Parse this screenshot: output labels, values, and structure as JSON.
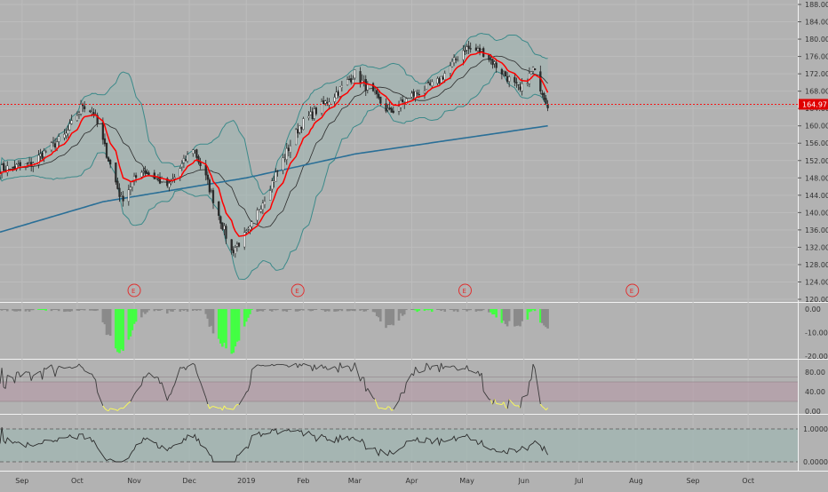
{
  "chart_data": [
    {
      "type": "candlestick",
      "panel": "price",
      "title": "",
      "ylim": [
        120,
        188
      ],
      "y_ticks": [
        "120.00",
        "124.00",
        "128.00",
        "132.00",
        "136.00",
        "140.00",
        "144.00",
        "148.00",
        "152.00",
        "156.00",
        "160.00",
        "164.00",
        "168.00",
        "172.00",
        "176.00",
        "180.00",
        "184.00",
        "188.00"
      ],
      "last_price_label": "164.97",
      "last_price": 164.97,
      "earnings_markers": [
        "E",
        "E",
        "E",
        "E"
      ],
      "earnings_marker_dates": [
        "2018-11-01",
        "2019-01-29",
        "2019-04-30",
        "2019-07-30"
      ],
      "close_series_anchors": {
        "dates": [
          "2018-08-20",
          "2018-09-05",
          "2018-09-25",
          "2018-10-04",
          "2018-10-10",
          "2018-10-25",
          "2018-11-05",
          "2018-11-20",
          "2018-12-03",
          "2018-12-10",
          "2018-12-24",
          "2019-01-03",
          "2019-01-08",
          "2019-01-30",
          "2019-02-20",
          "2019-03-01",
          "2019-03-20",
          "2019-04-01",
          "2019-04-15",
          "2019-04-30",
          "2019-05-10",
          "2019-05-30",
          "2019-06-06",
          "2019-06-14"
        ],
        "values": [
          150,
          151,
          158,
          165,
          163,
          143,
          150,
          146,
          155,
          148,
          131,
          136,
          141,
          160,
          168,
          172,
          163,
          167,
          170,
          178,
          177,
          168,
          173,
          165
        ]
      },
      "series": [
        {
          "name": "",
          "color": "#ff0000",
          "role": "ema-fast"
        },
        {
          "name": "",
          "color": "#2a6f97",
          "role": "sma-slow",
          "anchors_dates": [
            "2018-08-20",
            "2018-10-15",
            "2019-01-01",
            "2019-03-01",
            "2019-06-14"
          ],
          "anchors_values": [
            135.5,
            142.5,
            148,
            153.5,
            160
          ]
        },
        {
          "name": "",
          "color": "#3c8a8a",
          "role": "bollinger-band"
        }
      ],
      "colors": {
        "up": "#ffffff",
        "down": "#2b2b2b",
        "fast": "#ff0000",
        "slow": "#2a6f97",
        "band": "#3c8a8a",
        "price_line": "#ff0000"
      }
    },
    {
      "type": "bar",
      "panel": "histogram",
      "ylim": [
        -20,
        0
      ],
      "y_ticks": [
        "0.00",
        "-10.00",
        "-20.00"
      ],
      "green_ranges": [
        [
          "2018-09-10",
          "2018-09-14"
        ],
        [
          "2018-10-22",
          "2018-11-02"
        ],
        [
          "2018-12-17",
          "2019-01-04"
        ],
        [
          "2019-04-03",
          "2019-04-12"
        ],
        [
          "2019-05-14",
          "2019-05-20"
        ],
        [
          "2019-06-03",
          "2019-06-10"
        ]
      ],
      "colors": {
        "neutral": "#8a8a8a",
        "signal": "#43ff43"
      }
    },
    {
      "type": "line",
      "panel": "oscillator",
      "ylim": [
        0,
        100
      ],
      "y_ticks": [
        "0.00",
        "40.00",
        "80.00"
      ],
      "band": [
        20,
        60
      ],
      "colors": {
        "line": "#3b3b3b",
        "low": "#ffff55",
        "band": "#b59aa6"
      }
    },
    {
      "type": "line",
      "panel": "correlation",
      "ylim": [
        0,
        1.0
      ],
      "y_ticks": [
        "0.0000",
        "1.0000"
      ],
      "colors": {
        "line": "#2b2b2b",
        "fill": "#9fb7b2"
      }
    }
  ],
  "x_axis": {
    "start": "2018-08-20",
    "end": "2019-10-28",
    "labels": [
      {
        "text": "Sep",
        "date": "2018-09-01"
      },
      {
        "text": "Oct",
        "date": "2018-10-01"
      },
      {
        "text": "Nov",
        "date": "2018-11-01"
      },
      {
        "text": "Dec",
        "date": "2018-12-01"
      },
      {
        "text": "2019",
        "date": "2019-01-01"
      },
      {
        "text": "Feb",
        "date": "2019-02-01"
      },
      {
        "text": "Mar",
        "date": "2019-03-01"
      },
      {
        "text": "Apr",
        "date": "2019-04-01"
      },
      {
        "text": "May",
        "date": "2019-05-01"
      },
      {
        "text": "Jun",
        "date": "2019-06-01"
      },
      {
        "text": "Jul",
        "date": "2019-07-01"
      },
      {
        "text": "Aug",
        "date": "2019-08-01"
      },
      {
        "text": "Sep",
        "date": "2019-09-01"
      },
      {
        "text": "Oct",
        "date": "2019-10-01"
      }
    ]
  }
}
